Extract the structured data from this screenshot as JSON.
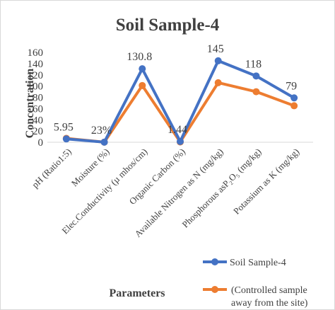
{
  "chart_data": {
    "type": "line",
    "title": "Soil Sample-4",
    "xlabel": "Parameters",
    "ylabel": "Concentration",
    "ylim": [
      0,
      160
    ],
    "y_ticks": [
      "0",
      "20",
      "40",
      "60",
      "80",
      "100",
      "120",
      "140",
      "160"
    ],
    "grid": false,
    "legend_position": "bottom-right",
    "categories": [
      "pH (Ratio1:5)",
      "Moisture (%)",
      "Elec.Conductivity (µ mhos/cm)",
      "Organic Carbon (%)",
      "Available Nitrogen as N (mg/kg)",
      "Phosphorous asP₂O₅ (mg/kg)",
      "Potassium as K (mg/kg)"
    ],
    "series": [
      {
        "name": "Soil Sample-4",
        "color": "#4472c4",
        "values": [
          5.95,
          0.23,
          130.8,
          1.44,
          145,
          118,
          79
        ],
        "data_labels": [
          "5.95",
          "23%",
          "130.8",
          "1.44",
          "145",
          "118",
          "79"
        ]
      },
      {
        "name": "(Controlled sample away from the site)",
        "legend_lines": [
          "(Controlled sample",
          "away from the site)"
        ],
        "color": "#ed7d31",
        "values": [
          7,
          0.2,
          101,
          0.5,
          106,
          90,
          65
        ]
      }
    ]
  }
}
